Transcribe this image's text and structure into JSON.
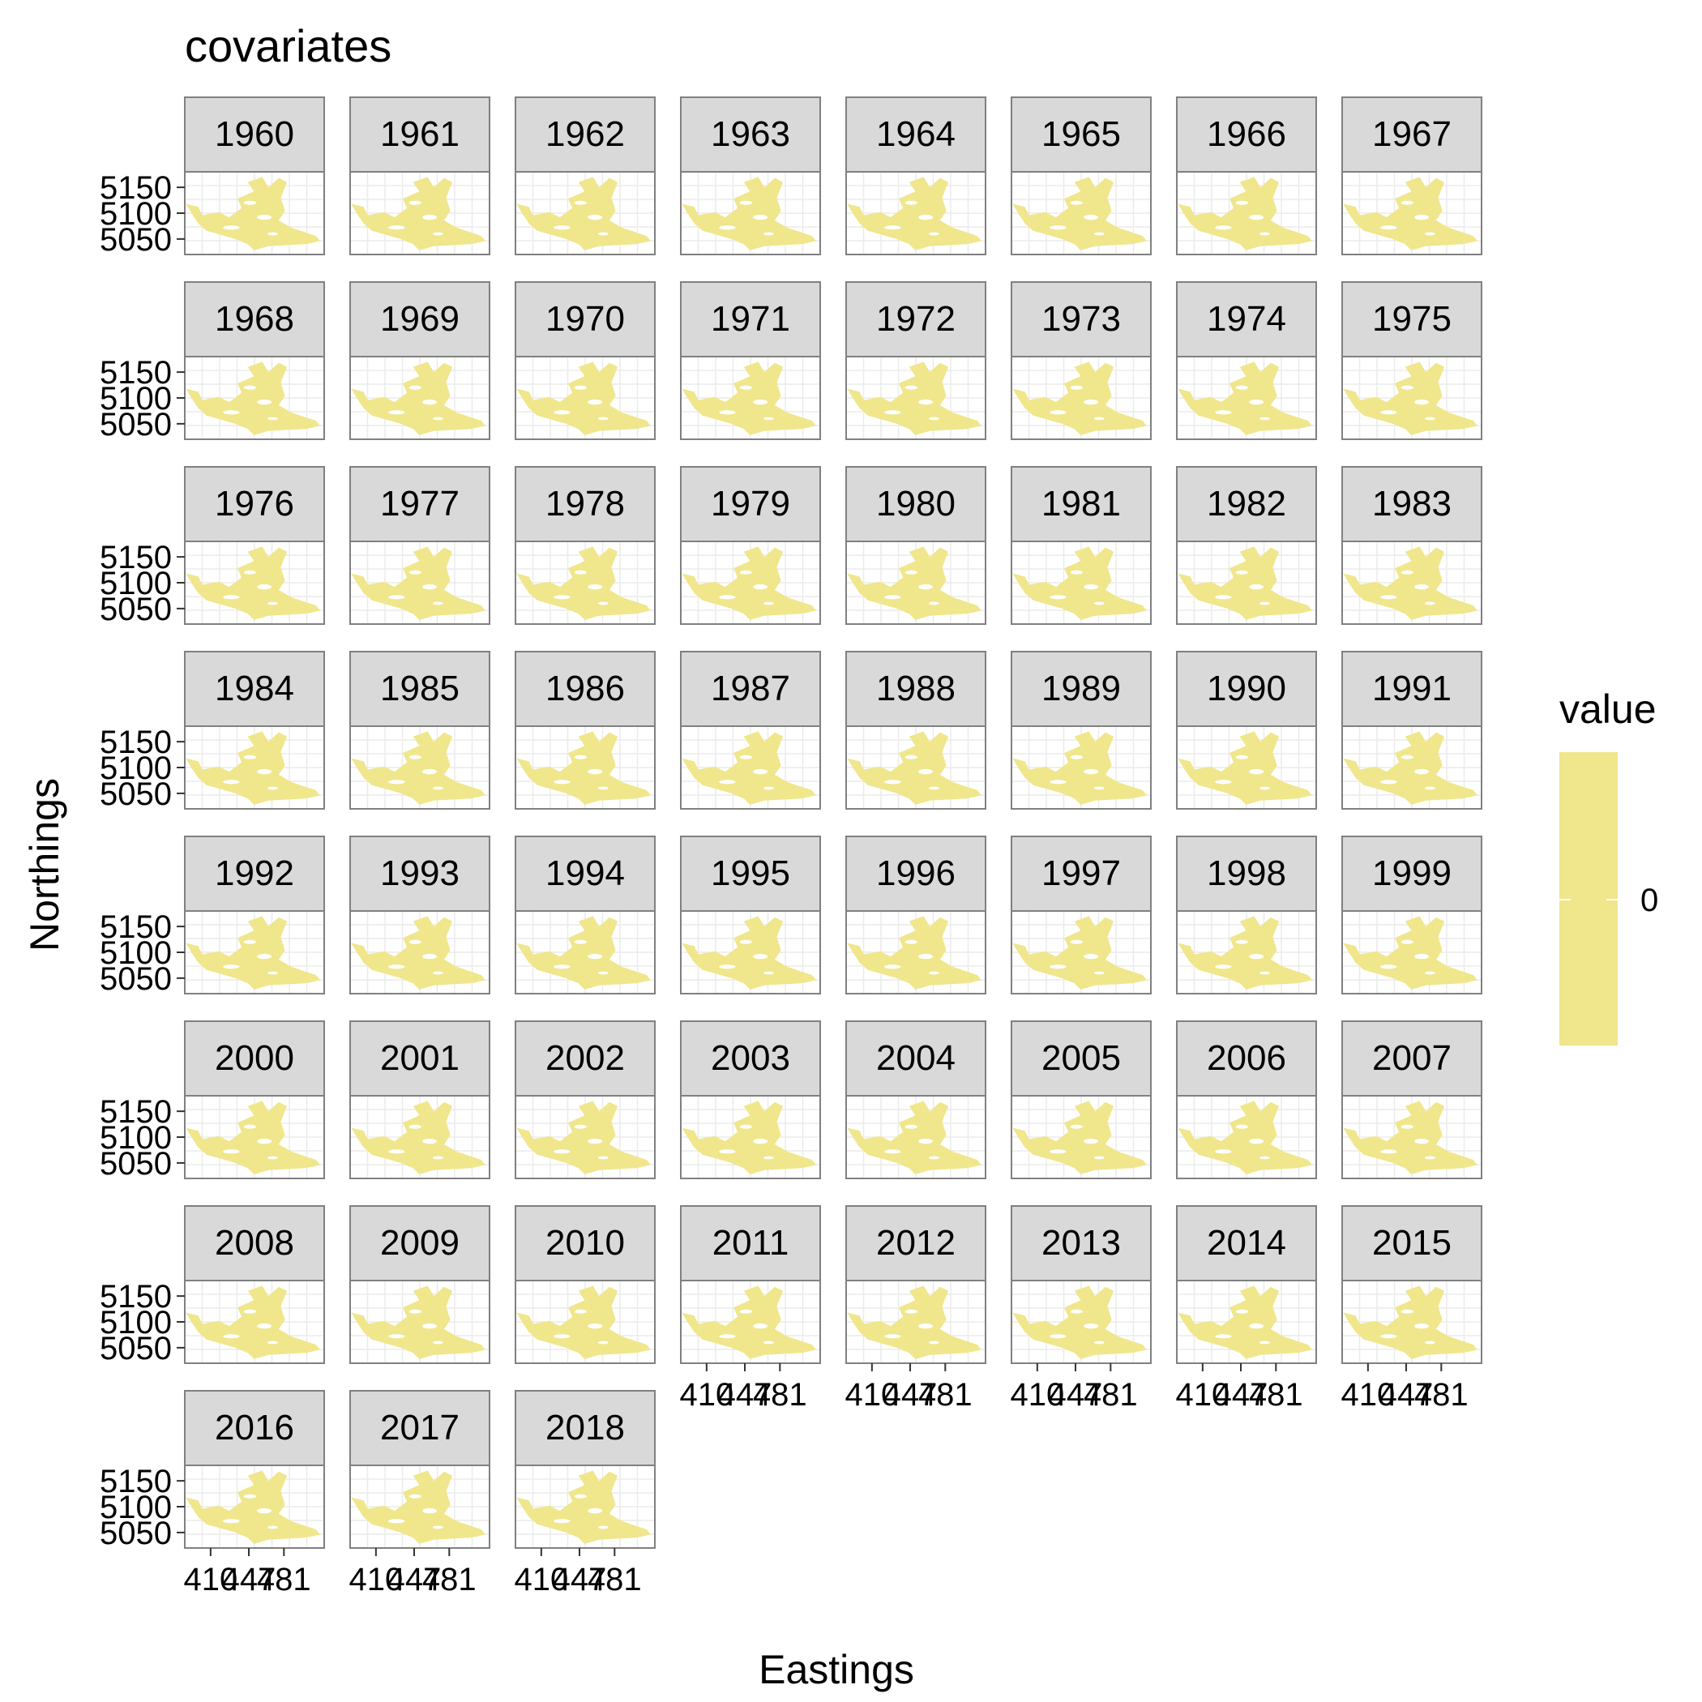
{
  "chart_data": {
    "type": "heatmap",
    "title": "covariates",
    "xlabel": "Eastings",
    "ylabel": "Northings",
    "facet_labels": [
      "1960",
      "1961",
      "1962",
      "1963",
      "1964",
      "1965",
      "1966",
      "1967",
      "1968",
      "1969",
      "1970",
      "1971",
      "1972",
      "1973",
      "1974",
      "1975",
      "1976",
      "1977",
      "1978",
      "1979",
      "1980",
      "1981",
      "1982",
      "1983",
      "1984",
      "1985",
      "1986",
      "1987",
      "1988",
      "1989",
      "1990",
      "1991",
      "1992",
      "1993",
      "1994",
      "1995",
      "1996",
      "1997",
      "1998",
      "1999",
      "2000",
      "2001",
      "2002",
      "2003",
      "2004",
      "2005",
      "2006",
      "2007",
      "2008",
      "2009",
      "2010",
      "2011",
      "2012",
      "2013",
      "2014",
      "2015",
      "2016",
      "2017",
      "2018"
    ],
    "y_ticks": [
      "5150",
      "5100",
      "5050"
    ],
    "x_ticks": [
      "410",
      "447",
      "481"
    ],
    "x_tick_values": [
      410,
      447,
      481
    ],
    "y_tick_values": [
      5150,
      5100,
      5050
    ],
    "legend": {
      "title": "value",
      "tick_label": "0",
      "color": "#F0E68C",
      "position": "right"
    },
    "grid": true,
    "fill_color": "#F0E68C",
    "panel_background": "#FFFFFF",
    "strip_background": "#D9D9D9",
    "panel_border_color": "#808080"
  }
}
